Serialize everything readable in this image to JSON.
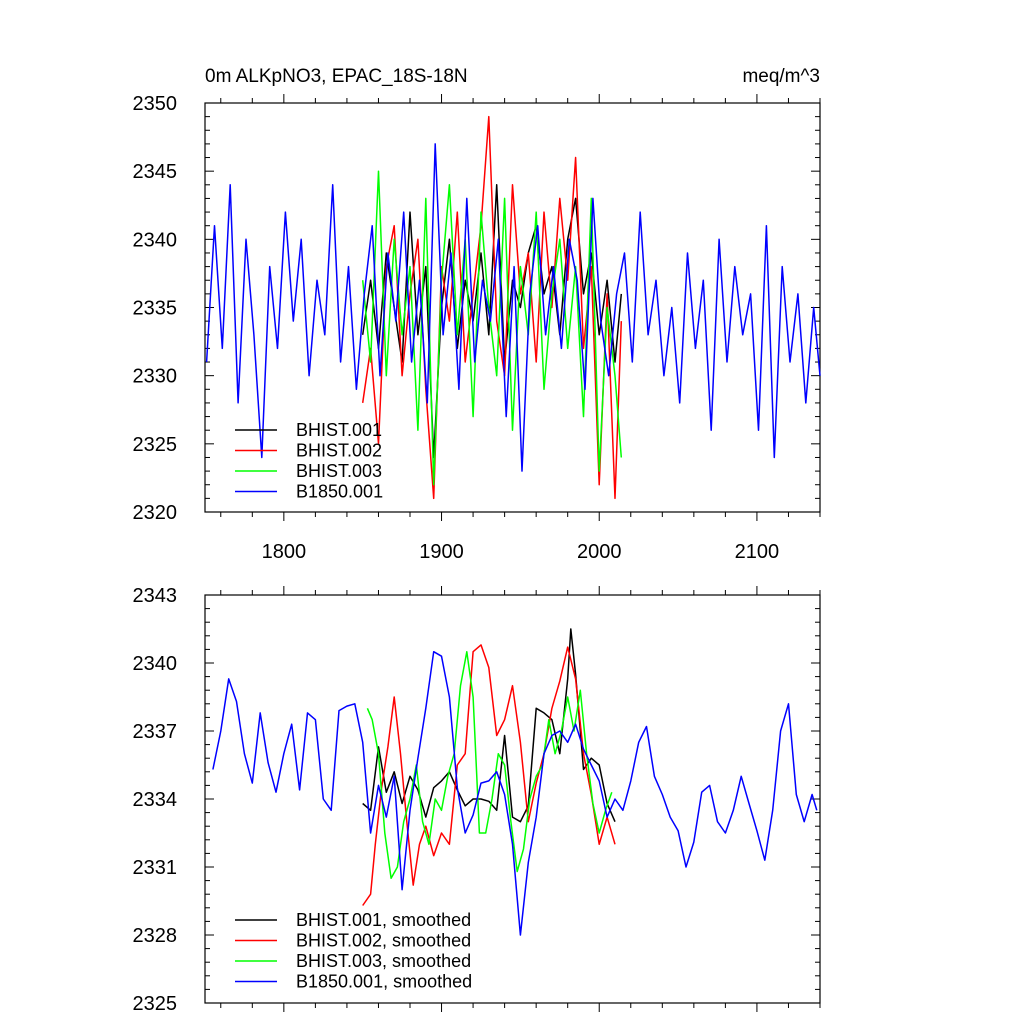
{
  "chart_data": [
    {
      "type": "line",
      "title_left": "0m ALKpNO3, EPAC_18S-18N",
      "title_right": "meq/m^3",
      "xlabel": "",
      "ylabel": "",
      "xlim": [
        1750,
        2140
      ],
      "ylim": [
        2320,
        2350
      ],
      "xticks": [
        1800,
        1900,
        2000,
        2100
      ],
      "xtick_labels": [
        "1800",
        "1900",
        "2000",
        "2100"
      ],
      "yticks": [
        2320,
        2325,
        2330,
        2335,
        2340,
        2345,
        2350
      ],
      "ytick_labels": [
        "2320",
        "2325",
        "2330",
        "2335",
        "2340",
        "2345",
        "2350"
      ],
      "grid": false,
      "legend_position": "bottom-left",
      "series": [
        {
          "name": "BHIST.001",
          "color": "#000000",
          "x": [
            1850,
            1855,
            1860,
            1865,
            1870,
            1875,
            1880,
            1885,
            1890,
            1895,
            1900,
            1905,
            1910,
            1915,
            1920,
            1925,
            1930,
            1935,
            1940,
            1945,
            1950,
            1955,
            1960,
            1965,
            1970,
            1975,
            1980,
            1985,
            1990,
            1995,
            2000,
            2005,
            2010,
            2014
          ],
          "y": [
            2333,
            2337,
            2332,
            2339,
            2335,
            2331,
            2342,
            2333,
            2338,
            2324,
            2335,
            2340,
            2332,
            2337,
            2334,
            2339,
            2333,
            2344,
            2331,
            2337,
            2335,
            2339,
            2341,
            2336,
            2338,
            2333,
            2340,
            2343,
            2336,
            2339,
            2333,
            2337,
            2331,
            2336
          ]
        },
        {
          "name": "BHIST.002",
          "color": "#ff0000",
          "x": [
            1850,
            1855,
            1860,
            1865,
            1870,
            1875,
            1880,
            1885,
            1890,
            1895,
            1900,
            1905,
            1910,
            1915,
            1920,
            1925,
            1930,
            1935,
            1940,
            1945,
            1950,
            1955,
            1960,
            1965,
            1970,
            1975,
            1980,
            1985,
            1990,
            1995,
            2000,
            2005,
            2010,
            2014
          ],
          "y": [
            2328,
            2332,
            2325,
            2338,
            2341,
            2330,
            2336,
            2340,
            2329,
            2321,
            2338,
            2334,
            2342,
            2331,
            2336,
            2341,
            2349,
            2334,
            2330,
            2344,
            2336,
            2339,
            2331,
            2342,
            2335,
            2343,
            2337,
            2346,
            2332,
            2338,
            2322,
            2336,
            2321,
            2334
          ]
        },
        {
          "name": "BHIST.003",
          "color": "#00ff00",
          "x": [
            1850,
            1855,
            1860,
            1865,
            1870,
            1875,
            1880,
            1885,
            1890,
            1895,
            1900,
            1905,
            1910,
            1915,
            1920,
            1925,
            1930,
            1935,
            1940,
            1945,
            1950,
            1955,
            1960,
            1965,
            1970,
            1975,
            1980,
            1985,
            1990,
            1995,
            2000,
            2005,
            2010,
            2014
          ],
          "y": [
            2337,
            2331,
            2345,
            2330,
            2340,
            2333,
            2338,
            2326,
            2343,
            2322,
            2337,
            2344,
            2333,
            2340,
            2327,
            2342,
            2335,
            2330,
            2343,
            2326,
            2338,
            2333,
            2342,
            2329,
            2336,
            2340,
            2332,
            2338,
            2327,
            2343,
            2323,
            2335,
            2330,
            2324
          ]
        },
        {
          "name": "B1850.001",
          "color": "#0000ff",
          "x": [
            1751,
            1756,
            1761,
            1766,
            1771,
            1776,
            1781,
            1786,
            1791,
            1796,
            1801,
            1806,
            1811,
            1816,
            1821,
            1826,
            1831,
            1836,
            1841,
            1846,
            1851,
            1856,
            1861,
            1866,
            1871,
            1876,
            1881,
            1886,
            1891,
            1896,
            1901,
            1906,
            1911,
            1916,
            1921,
            1926,
            1931,
            1936,
            1941,
            1946,
            1951,
            1956,
            1961,
            1966,
            1971,
            1976,
            1981,
            1986,
            1991,
            1996,
            2001,
            2006,
            2011,
            2016,
            2021,
            2026,
            2031,
            2036,
            2041,
            2046,
            2051,
            2056,
            2061,
            2066,
            2071,
            2076,
            2081,
            2086,
            2091,
            2096,
            2101,
            2106,
            2111,
            2116,
            2121,
            2126,
            2131,
            2136,
            2140
          ],
          "y": [
            2331,
            2341,
            2332,
            2344,
            2328,
            2340,
            2333,
            2324,
            2338,
            2332,
            2342,
            2334,
            2340,
            2330,
            2337,
            2333,
            2344,
            2331,
            2338,
            2329,
            2336,
            2341,
            2330,
            2339,
            2334,
            2342,
            2331,
            2337,
            2328,
            2347,
            2333,
            2339,
            2329,
            2343,
            2331,
            2337,
            2334,
            2340,
            2327,
            2338,
            2323,
            2336,
            2341,
            2333,
            2338,
            2332,
            2340,
            2337,
            2329,
            2343,
            2334,
            2330,
            2336,
            2339,
            2331,
            2342,
            2333,
            2337,
            2330,
            2335,
            2328,
            2339,
            2332,
            2337,
            2326,
            2340,
            2331,
            2338,
            2333,
            2336,
            2326,
            2341,
            2324,
            2338,
            2331,
            2336,
            2328,
            2335,
            2330
          ]
        }
      ]
    },
    {
      "type": "line",
      "xlim": [
        1750,
        2140
      ],
      "ylim": [
        2325,
        2343
      ],
      "xticks": [
        1800,
        1900,
        2000,
        2100
      ],
      "yticks": [
        2325,
        2328,
        2331,
        2334,
        2337,
        2340,
        2343
      ],
      "ytick_labels": [
        "2325",
        "2328",
        "2331",
        "2334",
        "2337",
        "2340",
        "2343"
      ],
      "grid": false,
      "legend_position": "bottom-left",
      "series": [
        {
          "name": "BHIST.001, smoothed",
          "color": "#000000",
          "x": [
            1850,
            1855,
            1860,
            1865,
            1870,
            1875,
            1880,
            1885,
            1890,
            1895,
            1900,
            1905,
            1910,
            1915,
            1920,
            1925,
            1930,
            1935,
            1940,
            1945,
            1950,
            1955,
            1960,
            1965,
            1970,
            1975,
            1980,
            1982,
            1985,
            1990,
            1995,
            2000,
            2005,
            2010
          ],
          "y": [
            2333.8,
            2333.5,
            2336.3,
            2334.3,
            2335.2,
            2333.8,
            2335,
            2334.4,
            2333.2,
            2334.5,
            2334.8,
            2335.2,
            2334.4,
            2333.7,
            2334,
            2334,
            2333.9,
            2333.5,
            2336.8,
            2333.2,
            2333,
            2333.7,
            2338,
            2337.8,
            2337.5,
            2336,
            2339.3,
            2341.5,
            2339.5,
            2335.3,
            2335.8,
            2335.5,
            2333.8,
            2333
          ]
        },
        {
          "name": "BHIST.002, smoothed",
          "color": "#ff0000",
          "x": [
            1850,
            1855,
            1858,
            1862,
            1866,
            1870,
            1874,
            1878,
            1882,
            1886,
            1890,
            1895,
            1900,
            1905,
            1910,
            1915,
            1920,
            1925,
            1930,
            1935,
            1940,
            1945,
            1950,
            1955,
            1960,
            1965,
            1970,
            1975,
            1980,
            1985,
            1990,
            1995,
            2000,
            2005,
            2010
          ],
          "y": [
            2329.3,
            2329.8,
            2332,
            2334.5,
            2336.3,
            2338.5,
            2336,
            2333,
            2330.2,
            2332,
            2332.8,
            2331.5,
            2332.5,
            2332,
            2335.5,
            2336,
            2340.5,
            2340.8,
            2339.8,
            2336.8,
            2337.5,
            2339,
            2336.5,
            2333,
            2334.7,
            2336,
            2338,
            2339.2,
            2340.7,
            2339.3,
            2336,
            2334.2,
            2332,
            2333.2,
            2332
          ]
        },
        {
          "name": "BHIST.003, smoothed",
          "color": "#00ff00",
          "x": [
            1853,
            1856,
            1860,
            1864,
            1868,
            1872,
            1876,
            1880,
            1884,
            1888,
            1892,
            1896,
            1900,
            1904,
            1908,
            1912,
            1916,
            1920,
            1924,
            1928,
            1932,
            1936,
            1940,
            1944,
            1948,
            1952,
            1956,
            1960,
            1964,
            1968,
            1972,
            1976,
            1980,
            1984,
            1988,
            1992,
            1996,
            2000,
            2004,
            2008
          ],
          "y": [
            2338,
            2337.5,
            2336,
            2332.5,
            2330.5,
            2331,
            2333,
            2334,
            2335.5,
            2333,
            2332,
            2334,
            2333.5,
            2335,
            2336,
            2339,
            2340.5,
            2338.5,
            2332.5,
            2332.5,
            2334,
            2336,
            2335.5,
            2333,
            2330.8,
            2331.8,
            2334,
            2335,
            2335.5,
            2337.5,
            2336,
            2337,
            2338.5,
            2337,
            2338.8,
            2336,
            2333.8,
            2332.5,
            2333.5,
            2334.3
          ]
        },
        {
          "name": "B1850.001, smoothed",
          "color": "#0000ff",
          "x": [
            1755,
            1760,
            1765,
            1770,
            1775,
            1780,
            1785,
            1790,
            1795,
            1800,
            1805,
            1810,
            1815,
            1820,
            1825,
            1830,
            1835,
            1840,
            1845,
            1850,
            1855,
            1860,
            1865,
            1870,
            1875,
            1880,
            1885,
            1890,
            1895,
            1900,
            1905,
            1910,
            1915,
            1920,
            1925,
            1930,
            1935,
            1940,
            1945,
            1950,
            1955,
            1960,
            1965,
            1970,
            1975,
            1980,
            1985,
            1990,
            1995,
            2000,
            2005,
            2010,
            2015,
            2020,
            2025,
            2030,
            2035,
            2040,
            2045,
            2050,
            2055,
            2060,
            2065,
            2070,
            2075,
            2080,
            2085,
            2090,
            2095,
            2100,
            2105,
            2110,
            2115,
            2120,
            2125,
            2130,
            2135,
            2138
          ],
          "y": [
            2335.3,
            2337,
            2339.3,
            2338.3,
            2336,
            2334.7,
            2337.8,
            2335.6,
            2334.3,
            2336,
            2337.3,
            2334.4,
            2337.8,
            2337.5,
            2334,
            2333.5,
            2337.9,
            2338.1,
            2338.2,
            2336.5,
            2332.5,
            2334.6,
            2333.2,
            2335,
            2330,
            2333.5,
            2335.8,
            2338,
            2340.5,
            2340.3,
            2338.5,
            2334.5,
            2332.5,
            2333.3,
            2334.7,
            2334.8,
            2335.2,
            2334.2,
            2332,
            2328,
            2331.2,
            2333.2,
            2336,
            2336.8,
            2337,
            2336.5,
            2337.3,
            2336.2,
            2335.5,
            2334.8,
            2333.2,
            2334,
            2333.5,
            2334.8,
            2336.5,
            2337.2,
            2335,
            2334.2,
            2333.2,
            2332.6,
            2331,
            2332.1,
            2334.3,
            2334.6,
            2333,
            2332.5,
            2333.5,
            2335,
            2333.8,
            2332.6,
            2331.3,
            2333.5,
            2337,
            2338.2,
            2334.2,
            2333,
            2334.2,
            2333.5
          ]
        }
      ]
    }
  ]
}
